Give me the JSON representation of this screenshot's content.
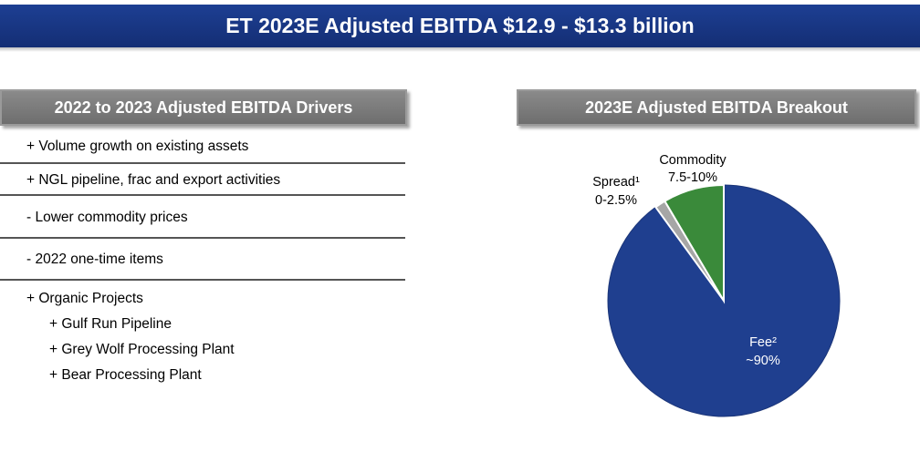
{
  "title": "ET 2023E Adjusted EBITDA $12.9 - $13.3 billion",
  "drivers": {
    "header": "2022 to 2023 Adjusted EBITDA Drivers",
    "items": [
      "+ Volume growth on existing assets",
      "+ NGL pipeline, frac and export activities",
      "- Lower commodity prices",
      "- 2022 one-time items"
    ],
    "organic": {
      "label": "+ Organic Projects",
      "subitems": [
        "+ Gulf Run Pipeline",
        "+ Grey Wolf Processing Plant",
        "+ Bear Processing Plant"
      ]
    }
  },
  "breakout": {
    "header": "2023E Adjusted EBITDA Breakout"
  },
  "chart_data": {
    "type": "pie",
    "title": "2023E Adjusted EBITDA Breakout",
    "slices": [
      {
        "label": "Fee²",
        "value_label": "~90%",
        "value": 90,
        "color": "#1f3f8f"
      },
      {
        "label": "Spread¹",
        "value_label": "0-2.5%",
        "value": 1.5,
        "color": "#a6a6a6"
      },
      {
        "label": "Commodity",
        "value_label": "7.5-10%",
        "value": 8.5,
        "color": "#3a8a3a"
      }
    ]
  }
}
